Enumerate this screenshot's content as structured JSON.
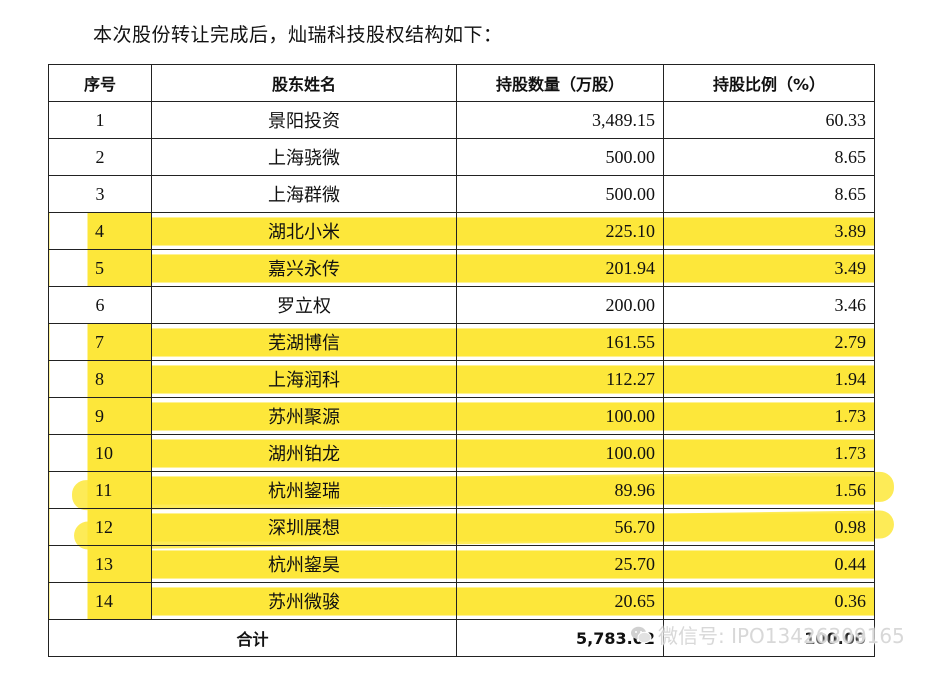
{
  "intro": "本次股份转让完成后，灿瑞科技股权结构如下：",
  "table": {
    "headers": [
      "序号",
      "股东姓名",
      "持股数量（万股）",
      "持股比例（%）"
    ],
    "rows": [
      {
        "seq": "1",
        "name": "景阳投资",
        "shares": "3,489.15",
        "ratio": "60.33",
        "highlight": false
      },
      {
        "seq": "2",
        "name": "上海骁微",
        "shares": "500.00",
        "ratio": "8.65",
        "highlight": false
      },
      {
        "seq": "3",
        "name": "上海群微",
        "shares": "500.00",
        "ratio": "8.65",
        "highlight": false
      },
      {
        "seq": "4",
        "name": "湖北小米",
        "shares": "225.10",
        "ratio": "3.89",
        "highlight": true
      },
      {
        "seq": "5",
        "name": "嘉兴永传",
        "shares": "201.94",
        "ratio": "3.49",
        "highlight": true
      },
      {
        "seq": "6",
        "name": "罗立权",
        "shares": "200.00",
        "ratio": "3.46",
        "highlight": false
      },
      {
        "seq": "7",
        "name": "芜湖博信",
        "shares": "161.55",
        "ratio": "2.79",
        "highlight": true
      },
      {
        "seq": "8",
        "name": "上海润科",
        "shares": "112.27",
        "ratio": "1.94",
        "highlight": true
      },
      {
        "seq": "9",
        "name": "苏州聚源",
        "shares": "100.00",
        "ratio": "1.73",
        "highlight": true
      },
      {
        "seq": "10",
        "name": "湖州铂龙",
        "shares": "100.00",
        "ratio": "1.73",
        "highlight": true
      },
      {
        "seq": "11",
        "name": "杭州鋆瑞",
        "shares": "89.96",
        "ratio": "1.56",
        "highlight": true
      },
      {
        "seq": "12",
        "name": "深圳展想",
        "shares": "56.70",
        "ratio": "0.98",
        "highlight": true
      },
      {
        "seq": "13",
        "name": "杭州鋆昊",
        "shares": "25.70",
        "ratio": "0.44",
        "highlight": true
      },
      {
        "seq": "14",
        "name": "苏州微骏",
        "shares": "20.65",
        "ratio": "0.36",
        "highlight": true
      }
    ],
    "total": {
      "label": "合计",
      "shares": "5,783.02",
      "ratio": "100.00"
    }
  },
  "watermark": {
    "text": "微信号: IPO13426309165",
    "icon": "wechat-icon"
  },
  "colors": {
    "highlight": "#fde73a",
    "border": "#222222"
  }
}
